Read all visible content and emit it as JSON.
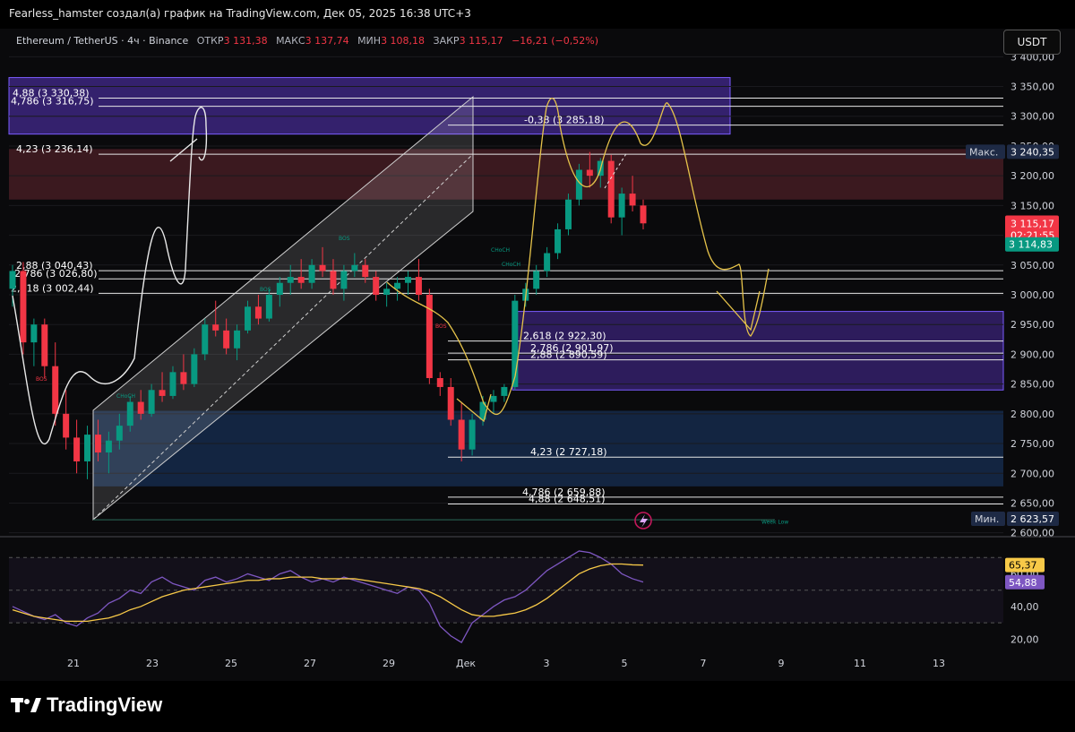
{
  "header": {
    "title": "Fearless_hamster создал(а) график на TradingView.com, Дек 05, 2025 16:38 UTC+3"
  },
  "symbol": {
    "name": "Ethereum / TetherUS · 4ч · Binance",
    "open_label": "ОТКР",
    "open": "3 131,38",
    "high_label": "МАКС",
    "high": "3 137,74",
    "low_label": "МИН",
    "low": "3 108,18",
    "close_label": "ЗАКР",
    "close": "3 115,17",
    "change": "−16,21 (−0,52%)"
  },
  "currency": "USDT",
  "colors": {
    "up": "#089981",
    "down": "#f23645",
    "zone_purple": "#4b2a9a",
    "zone_blue": "#1b3a6a",
    "zone_red": "#4a1d24",
    "rsi": "#7e57c2",
    "rsi_ma": "#f7c948"
  },
  "chart_data": [
    {
      "type": "candlestick",
      "y_axis_ticks": [
        "3 400,00",
        "3 350,00",
        "3 300,00",
        "3 250,00",
        "3 200,00",
        "3 150,00",
        "3 100,00",
        "3 050,00",
        "3 000,00",
        "2 950,00",
        "2 900,00",
        "2 850,00",
        "2 800,00",
        "2 750,00",
        "2 700,00",
        "2 650,00",
        "2 600,00"
      ],
      "y_axis_values": [
        3400,
        3350,
        3300,
        3250,
        3200,
        3150,
        3100,
        3050,
        3000,
        2950,
        2900,
        2850,
        2800,
        2750,
        2700,
        2650,
        2600
      ],
      "ylim": [
        2595,
        3405
      ],
      "x_axis_ticks": [
        "21",
        "23",
        "25",
        "27",
        "29",
        "Дек",
        "3",
        "5",
        "7",
        "9",
        "11",
        "13"
      ],
      "candles": [
        [
          3010,
          3050,
          2980,
          3040
        ],
        [
          3040,
          3055,
          2900,
          2920
        ],
        [
          2920,
          2960,
          2880,
          2950
        ],
        [
          2950,
          2960,
          2860,
          2880
        ],
        [
          2880,
          2920,
          2780,
          2800
        ],
        [
          2800,
          2840,
          2740,
          2760
        ],
        [
          2760,
          2790,
          2700,
          2720
        ],
        [
          2720,
          2780,
          2690,
          2765
        ],
        [
          2765,
          2790,
          2720,
          2735
        ],
        [
          2735,
          2770,
          2700,
          2755
        ],
        [
          2755,
          2800,
          2740,
          2780
        ],
        [
          2780,
          2830,
          2770,
          2820
        ],
        [
          2820,
          2840,
          2790,
          2800
        ],
        [
          2800,
          2850,
          2795,
          2840
        ],
        [
          2840,
          2870,
          2820,
          2830
        ],
        [
          2830,
          2880,
          2825,
          2870
        ],
        [
          2870,
          2900,
          2840,
          2850
        ],
        [
          2850,
          2910,
          2845,
          2900
        ],
        [
          2900,
          2960,
          2890,
          2950
        ],
        [
          2950,
          2990,
          2930,
          2940
        ],
        [
          2940,
          2960,
          2900,
          2910
        ],
        [
          2910,
          2950,
          2890,
          2940
        ],
        [
          2940,
          2990,
          2935,
          2980
        ],
        [
          2980,
          3000,
          2950,
          2960
        ],
        [
          2960,
          3010,
          2955,
          3000
        ],
        [
          3000,
          3030,
          2980,
          3020
        ],
        [
          3020,
          3050,
          3000,
          3030
        ],
        [
          3030,
          3060,
          3010,
          3020
        ],
        [
          3020,
          3060,
          3010,
          3050
        ],
        [
          3050,
          3080,
          3030,
          3040
        ],
        [
          3040,
          3060,
          3000,
          3010
        ],
        [
          3010,
          3050,
          2990,
          3040
        ],
        [
          3040,
          3070,
          3030,
          3050
        ],
        [
          3050,
          3060,
          3020,
          3030
        ],
        [
          3030,
          3040,
          2990,
          3000
        ],
        [
          3000,
          3020,
          2980,
          3010
        ],
        [
          3010,
          3030,
          2990,
          3020
        ],
        [
          3020,
          3040,
          3000,
          3030
        ],
        [
          3030,
          3060,
          2990,
          3000
        ],
        [
          3000,
          3010,
          2850,
          2860
        ],
        [
          2860,
          2870,
          2830,
          2845
        ],
        [
          2845,
          2860,
          2780,
          2790
        ],
        [
          2790,
          2820,
          2720,
          2740
        ],
        [
          2740,
          2800,
          2730,
          2790
        ],
        [
          2790,
          2830,
          2780,
          2820
        ],
        [
          2820,
          2840,
          2800,
          2830
        ],
        [
          2830,
          2850,
          2820,
          2845
        ],
        [
          2845,
          3000,
          2840,
          2990
        ],
        [
          2990,
          3020,
          2980,
          3010
        ],
        [
          3010,
          3050,
          3000,
          3040
        ],
        [
          3040,
          3080,
          3030,
          3070
        ],
        [
          3070,
          3120,
          3060,
          3110
        ],
        [
          3110,
          3170,
          3100,
          3160
        ],
        [
          3160,
          3220,
          3150,
          3210
        ],
        [
          3210,
          3240,
          3180,
          3200
        ],
        [
          3200,
          3230,
          3180,
          3225
        ],
        [
          3225,
          3235,
          3120,
          3130
        ],
        [
          3130,
          3180,
          3100,
          3170
        ],
        [
          3170,
          3200,
          3140,
          3150
        ],
        [
          3150,
          3160,
          3110,
          3120
        ]
      ],
      "levels": [
        {
          "label": "4,88 (3 330,38)",
          "value": 3330.38
        },
        {
          "label": "4,786 (3 316,75)",
          "value": 3316.75
        },
        {
          "label": "-0,38 (3 285,18)",
          "value": 3285.18
        },
        {
          "label": "4,23 (3 236,14)",
          "value": 3236.14
        },
        {
          "label": "2,88 (3 040,43)",
          "value": 3040.43
        },
        {
          "label": "2,786 (3 026,80)",
          "value": 3026.8
        },
        {
          "label": "2,618 (3 002,44)",
          "value": 3002.44
        },
        {
          "label": "2,618 (2 922,30)",
          "value": 2922.3
        },
        {
          "label": "2,786 (2 901,97)",
          "value": 2901.97
        },
        {
          "label": "2,88 (2 890,59)",
          "value": 2890.59
        },
        {
          "label": "4,23 (2 727,18)",
          "value": 2727.18
        },
        {
          "label": "4,786 (2 659,88)",
          "value": 2659.88
        },
        {
          "label": "4,88 (2 648,51)",
          "value": 2648.51
        }
      ],
      "zones": [
        {
          "name": "upper-purple",
          "top": 3365,
          "bottom": 3270
        },
        {
          "name": "red-resistance",
          "top": 3245,
          "bottom": 3160
        },
        {
          "name": "lower-purple",
          "top": 2972,
          "bottom": 2840
        },
        {
          "name": "blue-support",
          "top": 2805,
          "bottom": 2678
        }
      ],
      "markers": {
        "max_label": "Макс.",
        "max_value": "3 240,35",
        "min_label": "Мин.",
        "min_value": "2 623,57",
        "last_price": "3 115,17",
        "countdown": "02:21:55",
        "prev_price": "3 114,83",
        "week_low": "Week Low"
      },
      "annotations": [
        "BOS",
        "CHoCH",
        "BOS",
        "BOS",
        "CHoCH",
        "CHoCH",
        "BOS"
      ]
    },
    {
      "type": "line",
      "name": "RSI",
      "y_axis_ticks": [
        "60,00",
        "40,00",
        "20,00"
      ],
      "y_axis_values": [
        60,
        40,
        20
      ],
      "ylim": [
        12,
        80
      ],
      "rsi_value": "54,88",
      "ma_value": "65,37",
      "upper_band": 70,
      "lower_band": 30,
      "rsi": [
        40,
        37,
        34,
        32,
        35,
        30,
        28,
        33,
        36,
        42,
        45,
        50,
        48,
        55,
        58,
        54,
        52,
        50,
        56,
        58,
        55,
        57,
        60,
        58,
        56,
        60,
        62,
        58,
        55,
        57,
        55,
        58,
        56,
        54,
        52,
        50,
        48,
        52,
        50,
        42,
        28,
        22,
        18,
        30,
        35,
        40,
        44,
        46,
        50,
        56,
        62,
        66,
        70,
        74,
        73,
        70,
        66,
        60,
        57,
        55
      ],
      "rsi_ma": [
        38,
        36,
        34,
        33,
        32,
        31,
        31,
        31,
        32,
        33,
        35,
        38,
        40,
        43,
        46,
        48,
        50,
        51,
        52,
        53,
        54,
        55,
        56,
        56,
        57,
        57,
        58,
        58,
        58,
        57,
        57,
        57,
        57,
        56,
        55,
        54,
        53,
        52,
        51,
        49,
        46,
        42,
        38,
        35,
        34,
        34,
        35,
        36,
        38,
        41,
        45,
        50,
        55,
        60,
        63,
        65,
        66,
        66,
        65.5,
        65.37
      ]
    }
  ],
  "footer": {
    "brand": "TradingView"
  }
}
